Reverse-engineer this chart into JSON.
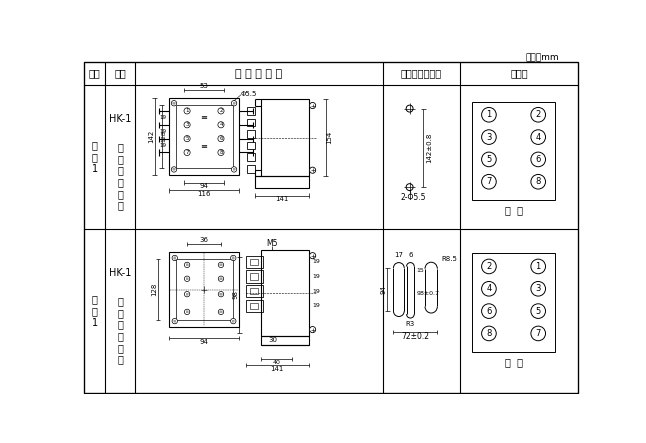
{
  "title_unit": "单位：mm",
  "col_headers": [
    "图号",
    "结构",
    "外 形 尺 寸 图",
    "安装开孔尺存图",
    "端子图"
  ],
  "r1_fig": "附\n图\n1",
  "r1_model": "HK-1",
  "r1_struct": "凸\n出\n式\n前\n接\n线",
  "r2_fig": "附\n图\n1",
  "r2_model": "HK-1",
  "r2_struct": "凸\n出\n式\n后\n接\n线",
  "front_label": "前  视",
  "back_label": "背  视",
  "bg": "#ffffff"
}
